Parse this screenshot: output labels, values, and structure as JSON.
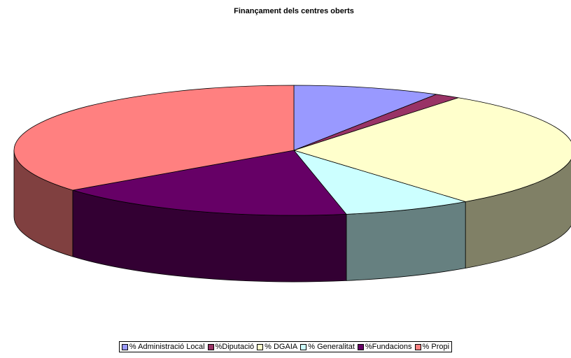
{
  "chart_data": {
    "type": "pie",
    "title": "Finançament dels centres oberts",
    "categories": [
      "% Administració Local",
      "%Diputació",
      "% DGAIA",
      "% Generalitat",
      "%Fundacions",
      "% Propi"
    ],
    "values": [
      8.5,
      1.5,
      29.5,
      7.5,
      17.5,
      35.5
    ],
    "colors": [
      "#9999ff",
      "#993366",
      "#ffffcc",
      "#ccffff",
      "#660066",
      "#ff8080"
    ],
    "legend": "bottom"
  }
}
